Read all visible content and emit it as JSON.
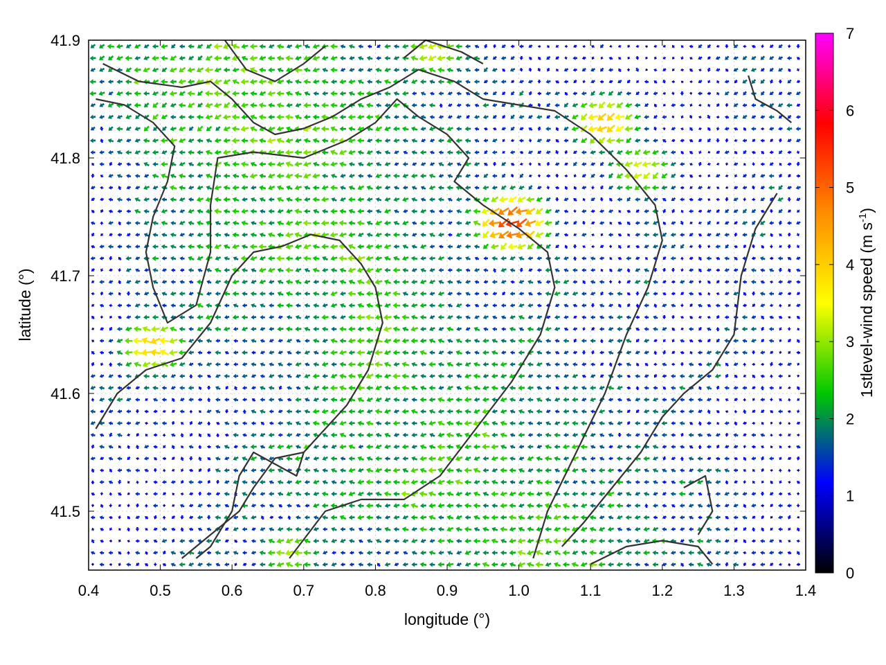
{
  "chart_data": {
    "type": "vector-field",
    "xlabel": "longitude (°)",
    "ylabel": "latitude (°)",
    "xlim": [
      0.4,
      1.4
    ],
    "ylim": [
      41.45,
      41.9
    ],
    "xticks": [
      "0.4",
      "0.5",
      "0.6",
      "0.7",
      "0.8",
      "0.9",
      "1.0",
      "1.1",
      "1.2",
      "1.3",
      "1.4"
    ],
    "yticks": [
      "41.5",
      "41.6",
      "41.7",
      "41.8",
      "41.9"
    ],
    "grid": true,
    "colorbar": {
      "label": "1stlevel-wind speed (m s-1)",
      "range": [
        0,
        7
      ],
      "ticks": [
        "0",
        "1",
        "2",
        "3",
        "4",
        "5",
        "6",
        "7"
      ],
      "colors": [
        "#000000",
        "#0000ff",
        "#00c800",
        "#ffff00",
        "#ff8c00",
        "#ff0000",
        "#ff00ff"
      ]
    },
    "wind_peaks": [
      {
        "lon": 0.99,
        "lat": 41.745,
        "speed": 5.4
      },
      {
        "lon": 1.12,
        "lat": 41.83,
        "speed": 4.1
      },
      {
        "lon": 1.17,
        "lat": 41.79,
        "speed": 3.4
      },
      {
        "lon": 0.49,
        "lat": 41.64,
        "speed": 4.0
      },
      {
        "lon": 0.68,
        "lat": 41.465,
        "speed": 3.1
      },
      {
        "lon": 0.88,
        "lat": 41.89,
        "speed": 3.3
      }
    ],
    "dominant_wind_direction": "from east to west",
    "contours": [
      [
        [
          0.42,
          41.88
        ],
        [
          0.47,
          41.865
        ],
        [
          0.53,
          41.86
        ],
        [
          0.57,
          41.865
        ],
        [
          0.6,
          41.85
        ],
        [
          0.63,
          41.83
        ],
        [
          0.66,
          41.82
        ],
        [
          0.7,
          41.825
        ],
        [
          0.74,
          41.835
        ],
        [
          0.78,
          41.85
        ],
        [
          0.82,
          41.86
        ],
        [
          0.86,
          41.875
        ],
        [
          0.91,
          41.865
        ],
        [
          0.95,
          41.85
        ],
        [
          1.0,
          41.845
        ],
        [
          1.05,
          41.84
        ],
        [
          1.1,
          41.82
        ],
        [
          1.15,
          41.79
        ],
        [
          1.19,
          41.76
        ],
        [
          1.2,
          41.73
        ],
        [
          1.18,
          41.69
        ],
        [
          1.15,
          41.65
        ],
        [
          1.12,
          41.6
        ],
        [
          1.08,
          41.55
        ],
        [
          1.04,
          41.5
        ],
        [
          1.02,
          41.46
        ]
      ],
      [
        [
          0.41,
          41.85
        ],
        [
          0.45,
          41.845
        ],
        [
          0.49,
          41.83
        ],
        [
          0.52,
          41.81
        ],
        [
          0.51,
          41.78
        ],
        [
          0.49,
          41.75
        ],
        [
          0.48,
          41.72
        ],
        [
          0.49,
          41.69
        ],
        [
          0.51,
          41.66
        ],
        [
          0.55,
          41.675
        ],
        [
          0.57,
          41.72
        ],
        [
          0.57,
          41.76
        ],
        [
          0.58,
          41.8
        ],
        [
          0.63,
          41.805
        ],
        [
          0.7,
          41.8
        ],
        [
          0.76,
          41.815
        ],
        [
          0.8,
          41.83
        ],
        [
          0.83,
          41.85
        ],
        [
          0.86,
          41.835
        ],
        [
          0.9,
          41.82
        ],
        [
          0.93,
          41.8
        ],
        [
          0.91,
          41.78
        ],
        [
          0.95,
          41.76
        ],
        [
          1.0,
          41.74
        ],
        [
          1.04,
          41.72
        ],
        [
          1.05,
          41.69
        ],
        [
          1.03,
          41.65
        ],
        [
          0.99,
          41.61
        ],
        [
          0.94,
          41.57
        ],
        [
          0.89,
          41.53
        ],
        [
          0.84,
          41.51
        ],
        [
          0.78,
          41.51
        ],
        [
          0.73,
          41.5
        ],
        [
          0.68,
          41.46
        ]
      ],
      [
        [
          0.41,
          41.57
        ],
        [
          0.44,
          41.6
        ],
        [
          0.48,
          41.62
        ],
        [
          0.53,
          41.63
        ],
        [
          0.57,
          41.66
        ],
        [
          0.6,
          41.7
        ],
        [
          0.63,
          41.72
        ],
        [
          0.67,
          41.725
        ],
        [
          0.71,
          41.735
        ],
        [
          0.75,
          41.73
        ],
        [
          0.78,
          41.71
        ],
        [
          0.8,
          41.69
        ],
        [
          0.81,
          41.66
        ],
        [
          0.79,
          41.62
        ],
        [
          0.76,
          41.59
        ],
        [
          0.73,
          41.57
        ],
        [
          0.7,
          41.55
        ],
        [
          0.69,
          41.53
        ],
        [
          0.66,
          41.54
        ],
        [
          0.63,
          41.55
        ],
        [
          0.61,
          41.53
        ],
        [
          0.6,
          41.5
        ],
        [
          0.57,
          41.47
        ],
        [
          0.55,
          41.46
        ]
      ],
      [
        [
          1.36,
          41.77
        ],
        [
          1.33,
          41.74
        ],
        [
          1.31,
          41.7
        ],
        [
          1.3,
          41.65
        ],
        [
          1.27,
          41.62
        ],
        [
          1.23,
          41.6
        ],
        [
          1.2,
          41.58
        ],
        [
          1.17,
          41.55
        ],
        [
          1.13,
          41.52
        ],
        [
          1.09,
          41.49
        ],
        [
          1.06,
          41.47
        ]
      ],
      [
        [
          1.23,
          41.52
        ],
        [
          1.26,
          41.53
        ],
        [
          1.27,
          41.5
        ],
        [
          1.25,
          41.48
        ]
      ],
      [
        [
          1.1,
          41.455
        ],
        [
          1.15,
          41.47
        ],
        [
          1.2,
          41.475
        ],
        [
          1.25,
          41.47
        ],
        [
          1.27,
          41.455
        ]
      ],
      [
        [
          0.53,
          41.46
        ],
        [
          0.57,
          41.48
        ],
        [
          0.61,
          41.5
        ],
        [
          0.63,
          41.52
        ],
        [
          0.66,
          41.545
        ],
        [
          0.7,
          41.55
        ]
      ],
      [
        [
          0.84,
          41.885
        ],
        [
          0.87,
          41.9
        ],
        [
          0.92,
          41.89
        ],
        [
          0.95,
          41.88
        ]
      ],
      [
        [
          0.59,
          41.9
        ],
        [
          0.62,
          41.875
        ],
        [
          0.66,
          41.865
        ],
        [
          0.7,
          41.88
        ],
        [
          0.73,
          41.895
        ]
      ],
      [
        [
          1.32,
          41.87
        ],
        [
          1.33,
          41.85
        ],
        [
          1.36,
          41.84
        ],
        [
          1.38,
          41.83
        ]
      ]
    ]
  }
}
